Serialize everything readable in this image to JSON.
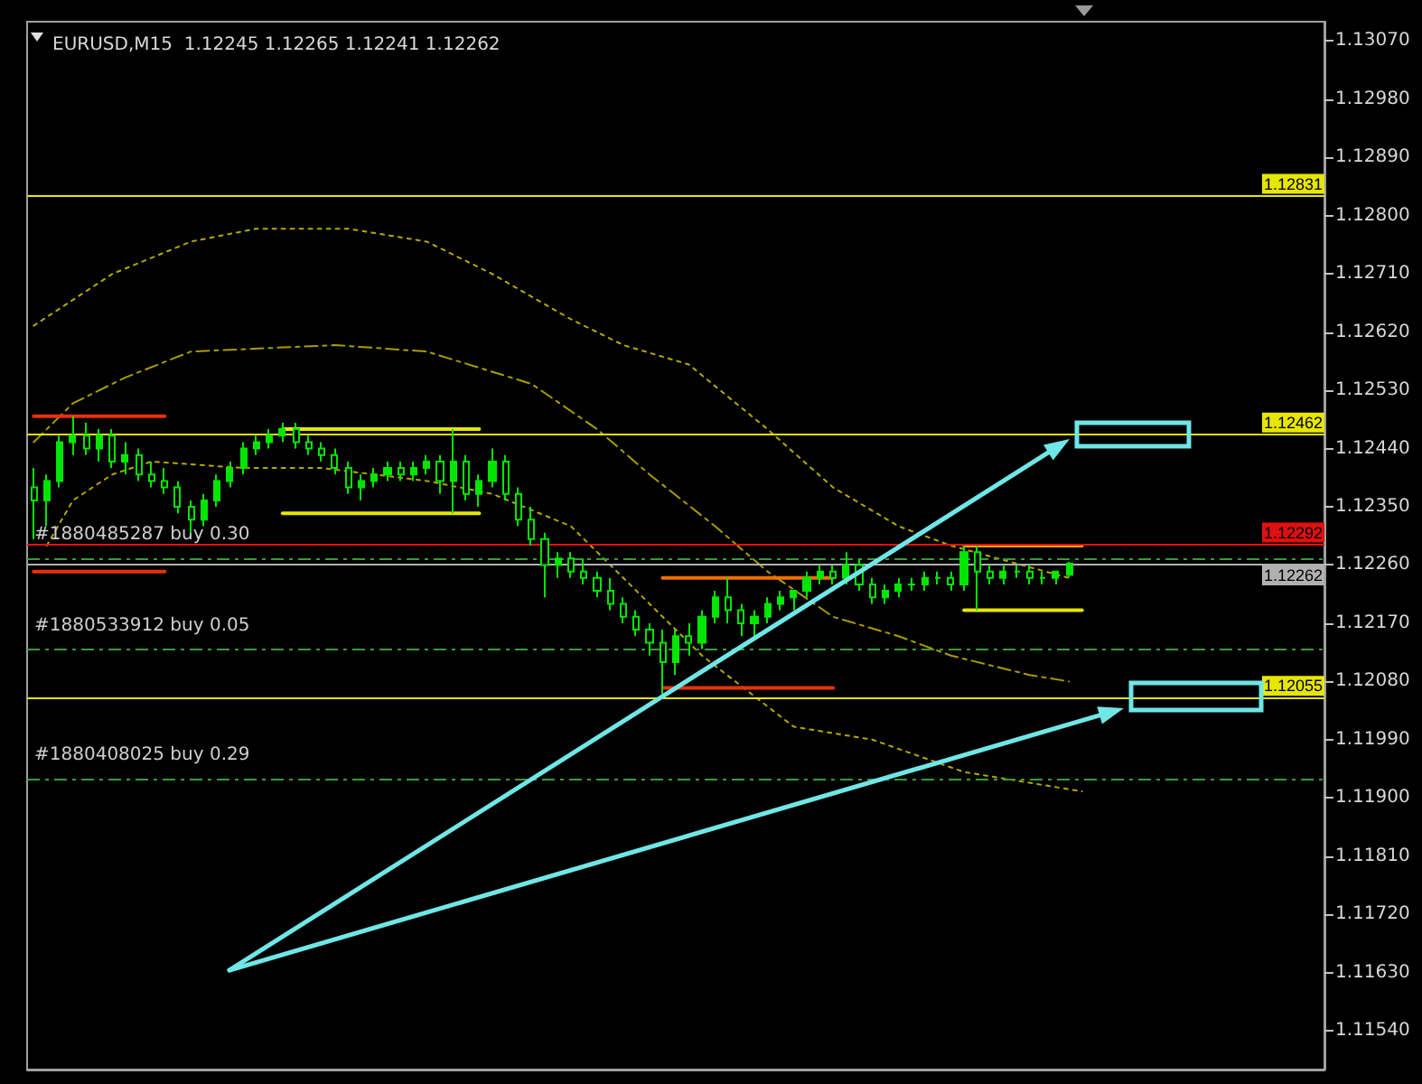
{
  "chart_data": {
    "type": "candlestick",
    "title": "EURUSD,M15  1.12245 1.12265 1.12241 1.12262",
    "categories": [
      null,
      null,
      null,
      null,
      null,
      null,
      null,
      null,
      null,
      null,
      null,
      null,
      null,
      null,
      null,
      null,
      null,
      null,
      null,
      null,
      null,
      null,
      null,
      null,
      null,
      null,
      null,
      null,
      null,
      null,
      null,
      null,
      null,
      null,
      null,
      null,
      null,
      null,
      null,
      null,
      null,
      null,
      null,
      null,
      null,
      null,
      null,
      null,
      null,
      null,
      null,
      null,
      null,
      null,
      null,
      null,
      null,
      null,
      null,
      null,
      null,
      null,
      null,
      null,
      null,
      null,
      null,
      null,
      null,
      null,
      null,
      null,
      null,
      null,
      null,
      null,
      null,
      null,
      null,
      null,
      null,
      null,
      null,
      null,
      null,
      null,
      null,
      null,
      null,
      null,
      null,
      null,
      null,
      null,
      null,
      null,
      null,
      null,
      null
    ],
    "series": [
      {
        "type": "line",
        "color": "#b5a800",
        "line_style": "dotted",
        "values": [
          1.1263,
          null,
          null,
          null,
          null,
          null,
          1.1271,
          null,
          null,
          null,
          null,
          null,
          1.1276,
          null,
          null,
          null,
          null,
          1.1278,
          null,
          null,
          null,
          null,
          null,
          null,
          1.1278,
          null,
          null,
          null,
          null,
          null,
          1.1276,
          null,
          null,
          null,
          null,
          1.1271,
          null,
          null,
          null,
          null,
          null,
          1.1264,
          null,
          null,
          null,
          1.126,
          null,
          null,
          null,
          null,
          1.1257,
          null,
          null,
          null,
          null,
          null,
          1.1247,
          null,
          null,
          null,
          null,
          1.1238,
          null,
          null,
          null,
          null,
          1.1232,
          null,
          null,
          null,
          1.1229,
          null,
          null,
          null,
          null,
          null,
          null,
          null,
          null,
          1.1224,
          null,
          null,
          null,
          null,
          null,
          null,
          null,
          null,
          null,
          null,
          null,
          null,
          null,
          null,
          null,
          null,
          null,
          null,
          null
        ]
      },
      {
        "type": "line",
        "color": "#a89c00",
        "line_style": "dashed",
        "values": [
          1.1245,
          null,
          null,
          1.1251,
          null,
          null,
          null,
          1.1255,
          null,
          null,
          null,
          null,
          1.1259,
          null,
          null,
          null,
          null,
          null,
          null,
          null,
          null,
          null,
          null,
          1.126,
          null,
          null,
          null,
          null,
          null,
          null,
          1.1259,
          null,
          null,
          null,
          null,
          null,
          null,
          null,
          1.1254,
          null,
          null,
          null,
          null,
          1.1247,
          null,
          null,
          null,
          1.124,
          null,
          null,
          null,
          null,
          1.1232,
          null,
          null,
          null,
          1.1225,
          null,
          null,
          null,
          null,
          1.1218,
          null,
          null,
          null,
          null,
          1.1215,
          null,
          null,
          null,
          1.1212,
          null,
          null,
          null,
          null,
          null,
          1.1209,
          null,
          null,
          1.1208,
          null,
          null,
          null,
          null,
          null,
          null,
          null,
          null,
          null,
          null,
          null,
          null,
          null,
          null,
          null,
          null,
          null,
          null,
          null
        ]
      },
      {
        "type": "line",
        "color": "#b5a800",
        "line_style": "dotted",
        "values": [
          null,
          1.1229,
          null,
          1.1236,
          null,
          null,
          1.124,
          null,
          null,
          1.1242,
          null,
          null,
          null,
          null,
          null,
          null,
          1.1241,
          null,
          null,
          null,
          null,
          null,
          1.1241,
          null,
          null,
          null,
          1.124,
          null,
          null,
          null,
          1.1239,
          null,
          null,
          null,
          null,
          1.1237,
          null,
          null,
          null,
          null,
          null,
          1.1232,
          null,
          null,
          null,
          null,
          null,
          1.122,
          null,
          null,
          null,
          1.1212,
          null,
          null,
          null,
          null,
          null,
          null,
          1.1201,
          null,
          null,
          null,
          null,
          null,
          1.1199,
          null,
          null,
          null,
          null,
          null,
          null,
          1.1194,
          null,
          null,
          null,
          null,
          null,
          null,
          null,
          null,
          1.1191,
          null,
          null,
          null,
          null,
          null,
          null,
          null,
          null,
          null,
          null,
          null,
          null,
          null,
          null,
          null,
          null,
          null,
          null
        ]
      },
      {
        "type": "line",
        "color": "#e8300c",
        "line_style": "solid",
        "values": [
          1.1249,
          null,
          null,
          null,
          null,
          null,
          null,
          null,
          null,
          null,
          1.1249,
          null,
          null,
          null,
          null,
          null,
          null,
          null,
          null,
          null,
          null,
          null,
          null,
          null,
          null,
          null,
          null,
          null,
          null,
          null,
          null,
          null,
          null,
          null,
          null,
          null,
          null,
          null,
          null,
          null,
          null,
          null,
          null,
          null,
          null,
          null,
          null,
          null,
          null,
          null,
          null,
          null,
          null,
          null,
          null,
          null,
          null,
          null,
          null,
          null,
          null,
          null,
          null,
          null,
          null,
          null,
          null,
          null,
          null,
          null,
          null,
          null,
          null,
          null,
          null,
          null,
          null,
          null,
          null,
          null,
          null,
          null,
          null,
          null,
          null,
          null,
          null,
          null,
          null,
          null,
          null,
          null,
          null,
          null,
          null,
          null,
          null,
          null,
          null
        ]
      },
      {
        "type": "line",
        "color": "#e8300c",
        "line_style": "solid",
        "values": [
          1.1225,
          null,
          null,
          null,
          null,
          null,
          null,
          null,
          null,
          null,
          1.1225,
          null,
          null,
          null,
          null,
          null,
          null,
          null,
          null,
          null,
          null,
          null,
          null,
          null,
          null,
          null,
          null,
          null,
          null,
          null,
          null,
          null,
          null,
          null,
          null,
          null,
          null,
          null,
          null,
          null,
          null,
          null,
          null,
          null,
          null,
          null,
          null,
          null,
          null,
          null,
          null,
          null,
          null,
          null,
          null,
          null,
          null,
          null,
          null,
          null,
          null,
          null,
          null,
          null,
          null,
          null,
          null,
          null,
          null,
          null,
          null,
          null,
          null,
          null,
          null,
          null,
          null,
          null,
          null,
          null,
          null,
          null,
          null,
          null,
          null,
          null,
          null,
          null,
          null,
          null,
          null,
          null,
          null,
          null,
          null,
          null,
          null,
          null,
          null
        ]
      },
      {
        "type": "line",
        "color": "#e6e600",
        "line_style": "solid",
        "values": [
          null,
          null,
          null,
          null,
          null,
          null,
          null,
          null,
          null,
          null,
          null,
          null,
          null,
          null,
          null,
          null,
          null,
          null,
          null,
          1.1247,
          null,
          null,
          null,
          null,
          null,
          null,
          null,
          null,
          null,
          null,
          null,
          null,
          null,
          null,
          1.1247,
          null,
          null,
          null,
          null,
          null,
          null,
          null,
          null,
          null,
          null,
          null,
          null,
          null,
          null,
          null,
          null,
          null,
          null,
          null,
          null,
          null,
          null,
          null,
          null,
          null,
          null,
          null,
          null,
          null,
          null,
          null,
          null,
          null,
          null,
          null,
          null,
          null,
          null,
          null,
          null,
          null,
          null,
          null,
          null,
          null,
          null,
          null,
          null,
          null,
          null,
          null,
          null,
          null,
          null,
          null,
          null,
          null,
          null,
          null,
          null,
          null,
          null,
          null,
          null
        ]
      },
      {
        "type": "line",
        "color": "#e6e600",
        "line_style": "solid",
        "values": [
          null,
          null,
          null,
          null,
          null,
          null,
          null,
          null,
          null,
          null,
          null,
          null,
          null,
          null,
          null,
          null,
          null,
          null,
          null,
          1.1234,
          null,
          null,
          null,
          null,
          null,
          null,
          null,
          null,
          null,
          null,
          null,
          null,
          null,
          null,
          1.1234,
          null,
          null,
          null,
          null,
          null,
          null,
          null,
          null,
          null,
          null,
          null,
          null,
          null,
          null,
          null,
          null,
          null,
          null,
          null,
          null,
          null,
          null,
          null,
          null,
          null,
          null,
          null,
          null,
          null,
          null,
          null,
          null,
          null,
          null,
          null,
          null,
          null,
          null,
          null,
          null,
          null,
          null,
          null,
          null,
          null,
          null,
          null,
          null,
          null,
          null,
          null,
          null,
          null,
          null,
          null,
          null,
          null,
          null,
          null,
          null,
          null,
          null,
          null,
          null
        ]
      },
      {
        "type": "line",
        "color": "#f07000",
        "line_style": "solid",
        "values": [
          null,
          null,
          null,
          null,
          null,
          null,
          null,
          null,
          null,
          null,
          null,
          null,
          null,
          null,
          null,
          null,
          null,
          null,
          null,
          null,
          null,
          null,
          null,
          null,
          null,
          null,
          null,
          null,
          null,
          null,
          null,
          null,
          null,
          null,
          null,
          null,
          null,
          null,
          null,
          null,
          null,
          null,
          null,
          null,
          null,
          null,
          null,
          null,
          1.1224,
          null,
          null,
          null,
          null,
          null,
          null,
          null,
          null,
          null,
          null,
          null,
          null,
          1.1224,
          null,
          null,
          null,
          null,
          null,
          null,
          null,
          null,
          null,
          null,
          null,
          null,
          null,
          null,
          null,
          null,
          null,
          null,
          null,
          null,
          null,
          null,
          null,
          null,
          null,
          null,
          null,
          null,
          null,
          null,
          null,
          null,
          null,
          null,
          null,
          null,
          null
        ]
      },
      {
        "type": "line",
        "color": "#e8300c",
        "line_style": "solid",
        "values": [
          null,
          null,
          null,
          null,
          null,
          null,
          null,
          null,
          null,
          null,
          null,
          null,
          null,
          null,
          null,
          null,
          null,
          null,
          null,
          null,
          null,
          null,
          null,
          null,
          null,
          null,
          null,
          null,
          null,
          null,
          null,
          null,
          null,
          null,
          null,
          null,
          null,
          null,
          null,
          null,
          null,
          null,
          null,
          null,
          null,
          null,
          null,
          null,
          1.1207,
          null,
          null,
          null,
          null,
          null,
          null,
          null,
          null,
          null,
          null,
          null,
          null,
          1.1207,
          null,
          null,
          null,
          null,
          null,
          null,
          null,
          null,
          null,
          null,
          null,
          null,
          null,
          null,
          null,
          null,
          null,
          null,
          null,
          null,
          null,
          null,
          null,
          null,
          null,
          null,
          null,
          null,
          null,
          null,
          null,
          null,
          null,
          null,
          null,
          null,
          null
        ]
      },
      {
        "type": "line",
        "color": "#f0a000",
        "line_style": "solid",
        "values": [
          null,
          null,
          null,
          null,
          null,
          null,
          null,
          null,
          null,
          null,
          null,
          null,
          null,
          null,
          null,
          null,
          null,
          null,
          null,
          null,
          null,
          null,
          null,
          null,
          null,
          null,
          null,
          null,
          null,
          null,
          null,
          null,
          null,
          null,
          null,
          null,
          null,
          null,
          null,
          null,
          null,
          null,
          null,
          null,
          null,
          null,
          null,
          null,
          null,
          null,
          null,
          null,
          null,
          null,
          null,
          null,
          null,
          null,
          null,
          null,
          null,
          null,
          null,
          null,
          null,
          null,
          null,
          null,
          null,
          null,
          null,
          1.1229,
          null,
          null,
          null,
          null,
          null,
          null,
          null,
          null,
          1.1229,
          null,
          null,
          null,
          null,
          null,
          null,
          null,
          null,
          null,
          null,
          null,
          null,
          null,
          null,
          null,
          null,
          null,
          null
        ]
      },
      {
        "type": "line",
        "color": "#e6e600",
        "line_style": "solid",
        "values": [
          null,
          null,
          null,
          null,
          null,
          null,
          null,
          null,
          null,
          null,
          null,
          null,
          null,
          null,
          null,
          null,
          null,
          null,
          null,
          null,
          null,
          null,
          null,
          null,
          null,
          null,
          null,
          null,
          null,
          null,
          null,
          null,
          null,
          null,
          null,
          null,
          null,
          null,
          null,
          null,
          null,
          null,
          null,
          null,
          null,
          null,
          null,
          null,
          null,
          null,
          null,
          null,
          null,
          null,
          null,
          null,
          null,
          null,
          null,
          null,
          null,
          null,
          null,
          null,
          null,
          null,
          null,
          null,
          null,
          null,
          null,
          1.1219,
          null,
          null,
          null,
          null,
          null,
          null,
          null,
          null,
          1.1219,
          null,
          null,
          null,
          null,
          null,
          null,
          null,
          null,
          null,
          null,
          null,
          null,
          null,
          null,
          null,
          null,
          null,
          null
        ]
      },
      {
        "type": "candlestick",
        "color": "#00e600",
        "ohlc": [
          [
            1.1238,
            1.1241,
            1.123,
            1.1236
          ],
          [
            1.1236,
            1.124,
            1.1232,
            1.1239
          ],
          [
            1.1239,
            1.1246,
            1.1238,
            1.1245
          ],
          [
            1.1245,
            1.1249,
            1.1243,
            1.1246
          ],
          [
            1.1246,
            1.1248,
            1.1243,
            1.1244
          ],
          [
            1.1244,
            1.1247,
            1.1242,
            1.1246
          ],
          [
            1.1246,
            1.1247,
            1.1241,
            1.1242
          ],
          [
            1.1242,
            1.1245,
            1.124,
            1.1243
          ],
          [
            1.1243,
            1.1244,
            1.1239,
            1.124
          ],
          [
            1.124,
            1.1242,
            1.1238,
            1.1239
          ],
          [
            1.1239,
            1.1241,
            1.1237,
            1.1238
          ],
          [
            1.1238,
            1.1239,
            1.1234,
            1.1235
          ],
          [
            1.1235,
            1.1236,
            1.1231,
            1.1233
          ],
          [
            1.1233,
            1.1237,
            1.1232,
            1.1236
          ],
          [
            1.1236,
            1.124,
            1.1235,
            1.1239
          ],
          [
            1.1239,
            1.1242,
            1.1238,
            1.1241
          ],
          [
            1.1241,
            1.1245,
            1.124,
            1.1244
          ],
          [
            1.1244,
            1.1246,
            1.1243,
            1.1245
          ],
          [
            1.1245,
            1.1247,
            1.1244,
            1.1246
          ],
          [
            1.1246,
            1.1248,
            1.1245,
            1.1247
          ],
          [
            1.1247,
            1.1248,
            1.1244,
            1.1245
          ],
          [
            1.1245,
            1.1246,
            1.1243,
            1.1244
          ],
          [
            1.1244,
            1.1245,
            1.1242,
            1.1243
          ],
          [
            1.1243,
            1.1244,
            1.124,
            1.1241
          ],
          [
            1.1241,
            1.1242,
            1.1237,
            1.1238
          ],
          [
            1.1238,
            1.124,
            1.1236,
            1.1239
          ],
          [
            1.1239,
            1.1241,
            1.1238,
            1.124
          ],
          [
            1.124,
            1.1242,
            1.1239,
            1.1241
          ],
          [
            1.1241,
            1.1242,
            1.1239,
            1.124
          ],
          [
            1.124,
            1.1242,
            1.1239,
            1.1241
          ],
          [
            1.1241,
            1.1243,
            1.124,
            1.1242
          ],
          [
            1.1242,
            1.1243,
            1.1237,
            1.1239
          ],
          [
            1.1239,
            1.1247,
            1.1234,
            1.1242
          ],
          [
            1.1242,
            1.1243,
            1.1236,
            1.1237
          ],
          [
            1.1237,
            1.124,
            1.1235,
            1.1239
          ],
          [
            1.1239,
            1.1244,
            1.1238,
            1.1242
          ],
          [
            1.1242,
            1.1243,
            1.1236,
            1.1237
          ],
          [
            1.1237,
            1.1238,
            1.1232,
            1.1233
          ],
          [
            1.1233,
            1.1235,
            1.1229,
            1.123
          ],
          [
            1.123,
            1.1231,
            1.1221,
            1.1226
          ],
          [
            1.1226,
            1.1228,
            1.1224,
            1.1227
          ],
          [
            1.1227,
            1.1228,
            1.1224,
            1.1225
          ],
          [
            1.1225,
            1.1227,
            1.1223,
            1.1224
          ],
          [
            1.1224,
            1.1225,
            1.1221,
            1.1222
          ],
          [
            1.1222,
            1.1224,
            1.1219,
            1.122
          ],
          [
            1.122,
            1.1221,
            1.1217,
            1.1218
          ],
          [
            1.1218,
            1.1219,
            1.1215,
            1.1216
          ],
          [
            1.1216,
            1.1217,
            1.1212,
            1.1214
          ],
          [
            1.1214,
            1.1216,
            1.1206,
            1.1211
          ],
          [
            1.1211,
            1.1216,
            1.1209,
            1.1215
          ],
          [
            1.1215,
            1.1217,
            1.1212,
            1.1214
          ],
          [
            1.1214,
            1.1219,
            1.1213,
            1.1218
          ],
          [
            1.1218,
            1.1222,
            1.1217,
            1.1221
          ],
          [
            1.1221,
            1.1224,
            1.1217,
            1.1219
          ],
          [
            1.1219,
            1.122,
            1.1215,
            1.1217
          ],
          [
            1.1217,
            1.1219,
            1.1215,
            1.1218
          ],
          [
            1.1218,
            1.1221,
            1.1217,
            1.122
          ],
          [
            1.122,
            1.1222,
            1.1219,
            1.1221
          ],
          [
            1.1221,
            1.1222,
            1.1219,
            1.1222
          ],
          [
            1.1222,
            1.1225,
            1.1221,
            1.1224
          ],
          [
            1.1224,
            1.1226,
            1.1223,
            1.1225
          ],
          [
            1.1225,
            1.1226,
            1.1223,
            1.1224
          ],
          [
            1.1224,
            1.1228,
            1.1223,
            1.1226
          ],
          [
            1.1226,
            1.1227,
            1.1222,
            1.1223
          ],
          [
            1.1223,
            1.1224,
            1.122,
            1.1221
          ],
          [
            1.1221,
            1.1223,
            1.122,
            1.1222
          ],
          [
            1.1222,
            1.1224,
            1.1221,
            1.1223
          ],
          [
            1.1223,
            1.1224,
            1.1222,
            1.1223
          ],
          [
            1.1223,
            1.1225,
            1.1222,
            1.1224
          ],
          [
            1.1224,
            1.1225,
            1.1223,
            1.1224
          ],
          [
            1.1224,
            1.1225,
            1.1222,
            1.1223
          ],
          [
            1.1223,
            1.1229,
            1.1222,
            1.1228
          ],
          [
            1.1228,
            1.1229,
            1.1219,
            1.1225
          ],
          [
            1.1225,
            1.1226,
            1.1223,
            1.1224
          ],
          [
            1.1224,
            1.1226,
            1.1223,
            1.1225
          ],
          [
            1.1225,
            1.1226,
            1.1224,
            1.1225
          ],
          [
            1.1225,
            1.1226,
            1.1223,
            1.1224
          ],
          [
            1.1224,
            1.1225,
            1.1223,
            1.1224
          ],
          [
            1.1224,
            1.1225,
            1.1223,
            1.1225
          ],
          [
            1.12245,
            1.12265,
            1.12241,
            1.12262
          ],
          null,
          null,
          null,
          null,
          null,
          null,
          null,
          null,
          null,
          null,
          null,
          null,
          null,
          null,
          null,
          null,
          null,
          null,
          null
        ]
      }
    ],
    "ylim": [
      1.1148,
      1.131
    ],
    "yticks": [
      {
        "value": 1.1154,
        "label": "1.11540"
      },
      {
        "value": 1.1163,
        "label": "1.11630"
      },
      {
        "value": 1.1172,
        "label": "1.11720"
      },
      {
        "value": 1.1181,
        "label": "1.11810"
      },
      {
        "value": 1.119,
        "label": "1.11900"
      },
      {
        "value": 1.1199,
        "label": "1.11990"
      },
      {
        "value": 1.1208,
        "label": "1.12080"
      },
      {
        "value": 1.1217,
        "label": "1.12170"
      },
      {
        "value": 1.1226,
        "label": "1.12260"
      },
      {
        "value": 1.1235,
        "label": "1.12350"
      },
      {
        "value": 1.1244,
        "label": "1.12440"
      },
      {
        "value": 1.1253,
        "label": "1.12530"
      },
      {
        "value": 1.1262,
        "label": "1.12620"
      },
      {
        "value": 1.1271,
        "label": "1.12710"
      },
      {
        "value": 1.128,
        "label": "1.12800"
      },
      {
        "value": 1.1289,
        "label": "1.12890"
      },
      {
        "value": 1.1298,
        "label": "1.12980"
      },
      {
        "value": 1.1307,
        "label": "1.13070"
      }
    ],
    "tick_labels": "y",
    "ref_lines": [
      {
        "axis": "y",
        "value": 1.12831,
        "label": "1.12831",
        "color": "#e6e600",
        "line_style": "solid"
      },
      {
        "axis": "y",
        "value": 1.12462,
        "label": "1.12462",
        "color": "#e6e600",
        "line_style": "solid"
      },
      {
        "axis": "y",
        "value": 1.12292,
        "label": "1.12292",
        "color": "#e01010",
        "line_style": "solid"
      },
      {
        "axis": "y",
        "value": 1.12262,
        "label": "1.12262",
        "color": "#b0b0b0",
        "line_style": "solid"
      },
      {
        "axis": "y",
        "value": 1.12055,
        "label": "1.12055",
        "color": "#e6e600",
        "line_style": "solid"
      },
      {
        "axis": "y",
        "value": 1.1227,
        "label": "#1880485287 buy 0.30",
        "color": "#3a9a3a",
        "line_style": "dashed"
      },
      {
        "axis": "y",
        "value": 1.1213,
        "label": "#1880533912 buy 0.05",
        "color": "#3a9a3a",
        "line_style": "dashed"
      },
      {
        "axis": "y",
        "value": 1.1193,
        "label": "#1880408025 buy 0.29",
        "color": "#3a9a3a",
        "line_style": "dashed"
      }
    ]
  }
}
